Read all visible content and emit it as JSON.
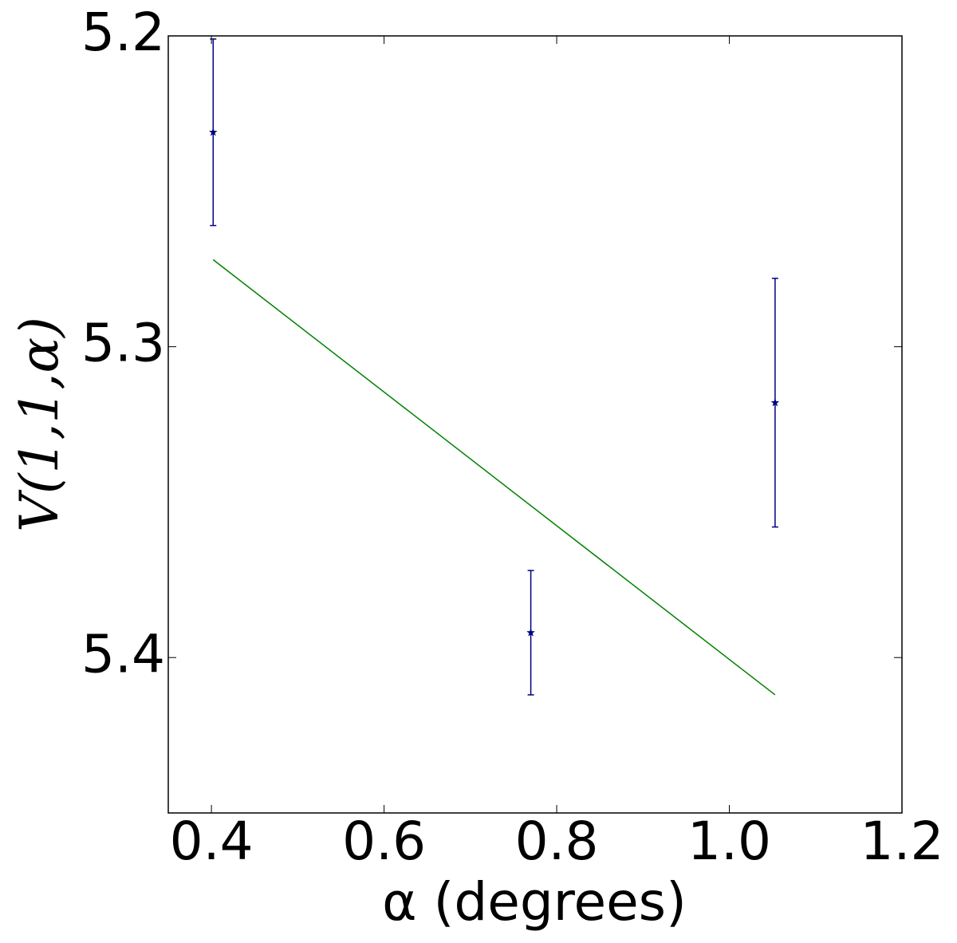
{
  "chart_data": {
    "type": "errorbar",
    "x_label": "α (degrees)",
    "y_label": "V(1,1,α)",
    "xlim": [
      0.35,
      1.2
    ],
    "xticks": [
      0.4,
      0.6,
      0.8,
      {
        "value": 1,
        "label": "1.0"
      },
      1.2
    ],
    "ylim": [
      5.2,
      5.45
    ],
    "yticks": [
      5.2,
      5.3,
      5.4
    ],
    "y_inverted": true,
    "grid": false,
    "series": [
      {
        "style": "errorbar",
        "color": "#000080",
        "x": [
          0.402,
          0.77,
          1.053
        ],
        "values": [
          5.231,
          5.392,
          5.318
        ],
        "errors": [
          0.03,
          0.02,
          0.04
        ]
      },
      {
        "style": "line",
        "color": "#008000",
        "x": [
          0.402,
          1.053
        ],
        "values": [
          5.272,
          5.412
        ]
      }
    ]
  }
}
